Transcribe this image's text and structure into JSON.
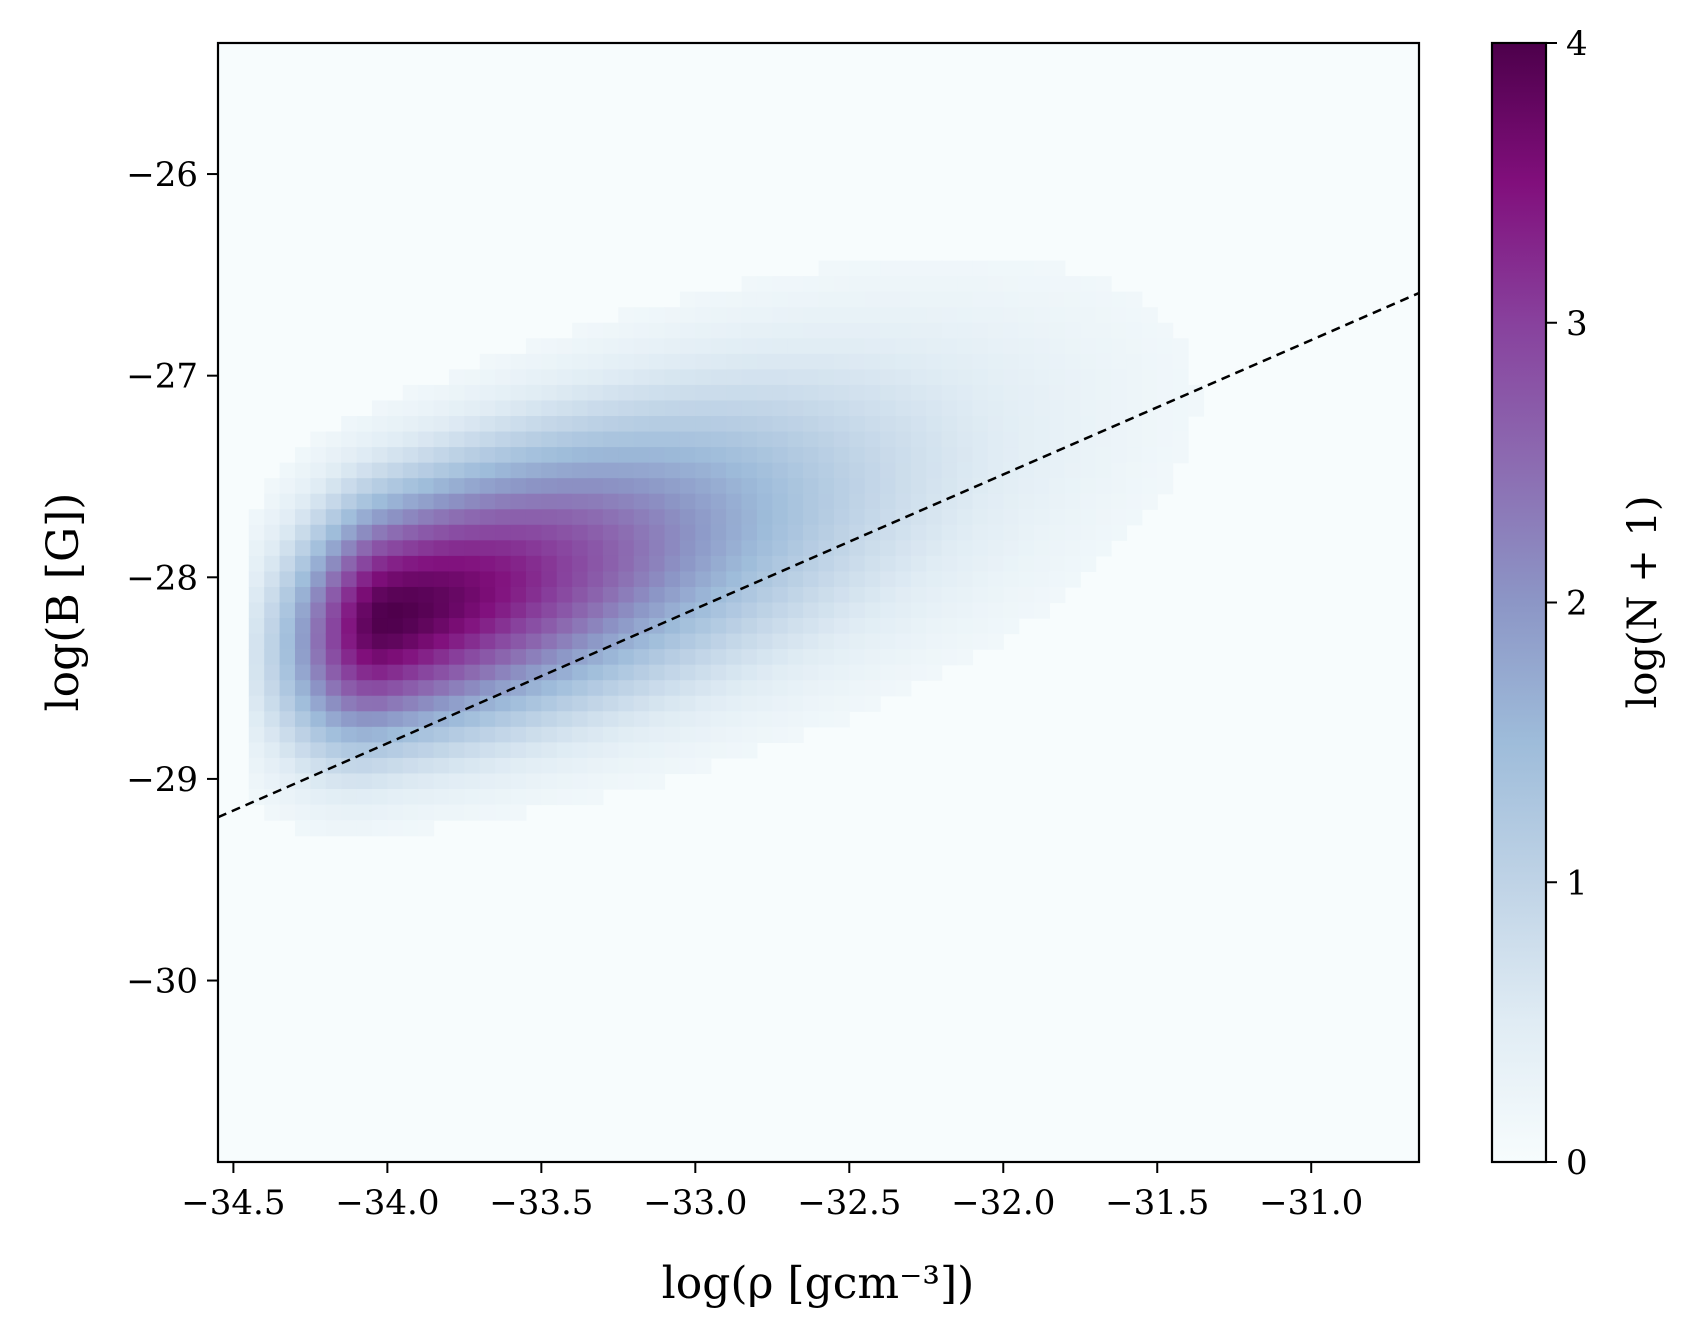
{
  "chart_data": {
    "type": "heatmap",
    "xlabel": "log(ρ [gcm⁻³])",
    "ylabel": "log(B [G])",
    "xlim": [
      -34.55,
      -30.65
    ],
    "ylim": [
      -30.9,
      -25.35
    ],
    "x_ticks": [
      {
        "value": -34.5,
        "label": "−34.5"
      },
      {
        "value": -34.0,
        "label": "−34.0"
      },
      {
        "value": -33.5,
        "label": "−33.5"
      },
      {
        "value": -33.0,
        "label": "−33.0"
      },
      {
        "value": -32.5,
        "label": "−32.5"
      },
      {
        "value": -32.0,
        "label": "−32.0"
      },
      {
        "value": -31.5,
        "label": "−31.5"
      },
      {
        "value": -31.0,
        "label": "−31.0"
      }
    ],
    "y_ticks": [
      {
        "value": -26,
        "label": "−26"
      },
      {
        "value": -27,
        "label": "−27"
      },
      {
        "value": -28,
        "label": "−28"
      },
      {
        "value": -29,
        "label": "−29"
      },
      {
        "value": -30,
        "label": "−30"
      }
    ],
    "colorbar": {
      "label": "log(N + 1)",
      "range": [
        0,
        4
      ],
      "ticks": [
        {
          "value": 0,
          "label": "0"
        },
        {
          "value": 1,
          "label": "1"
        },
        {
          "value": 2,
          "label": "2"
        },
        {
          "value": 3,
          "label": "3"
        },
        {
          "value": 4,
          "label": "4"
        }
      ],
      "colormap": [
        "#f7fcfd",
        "#e0ecf4",
        "#bfd3e6",
        "#9ebcda",
        "#8c96c6",
        "#8c6bb1",
        "#88419d",
        "#810f7c",
        "#4d004b"
      ]
    },
    "density_peak": {
      "x": -34.0,
      "y": -28.2,
      "value": 4.0
    },
    "fit_line": {
      "style": "dashed",
      "color": "#000000",
      "points": [
        {
          "x": -34.55,
          "y": -29.19
        },
        {
          "x": -30.65,
          "y": -26.59
        }
      ]
    },
    "grid": false
  }
}
